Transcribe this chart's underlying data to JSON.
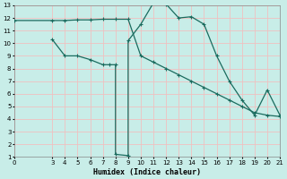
{
  "xlabel": "Humidex (Indice chaleur)",
  "bg_color": "#c8ede8",
  "grid_color": "#f0c0c0",
  "line_color": "#1a6b5e",
  "line1_x": [
    0,
    3,
    4,
    5,
    6,
    7,
    8,
    9,
    10,
    11,
    12,
    13,
    14,
    15,
    16,
    17,
    18,
    19,
    20,
    21
  ],
  "line1_y": [
    11.8,
    11.8,
    11.8,
    11.85,
    11.85,
    11.9,
    11.9,
    11.9,
    9.0,
    8.5,
    8.0,
    7.5,
    7.0,
    6.5,
    6.0,
    5.5,
    5.0,
    4.5,
    4.3,
    4.2
  ],
  "line2_x": [
    3,
    4,
    5,
    6,
    7,
    7.5,
    8,
    8,
    9,
    9,
    10,
    11,
    12,
    13,
    14,
    15,
    16,
    17,
    18,
    19,
    20,
    21
  ],
  "line2_y": [
    10.3,
    9.0,
    9.0,
    8.7,
    8.3,
    8.3,
    8.3,
    1.2,
    1.1,
    10.2,
    11.5,
    13.2,
    13.1,
    12.0,
    12.1,
    11.5,
    9.0,
    7.0,
    5.5,
    4.3,
    6.3,
    4.3
  ],
  "xlim": [
    0,
    21
  ],
  "ylim": [
    1,
    13
  ],
  "xticks": [
    0,
    3,
    4,
    5,
    6,
    7,
    8,
    9,
    10,
    11,
    12,
    13,
    14,
    15,
    16,
    17,
    18,
    19,
    20,
    21
  ],
  "yticks": [
    1,
    2,
    3,
    4,
    5,
    6,
    7,
    8,
    9,
    10,
    11,
    12,
    13
  ]
}
